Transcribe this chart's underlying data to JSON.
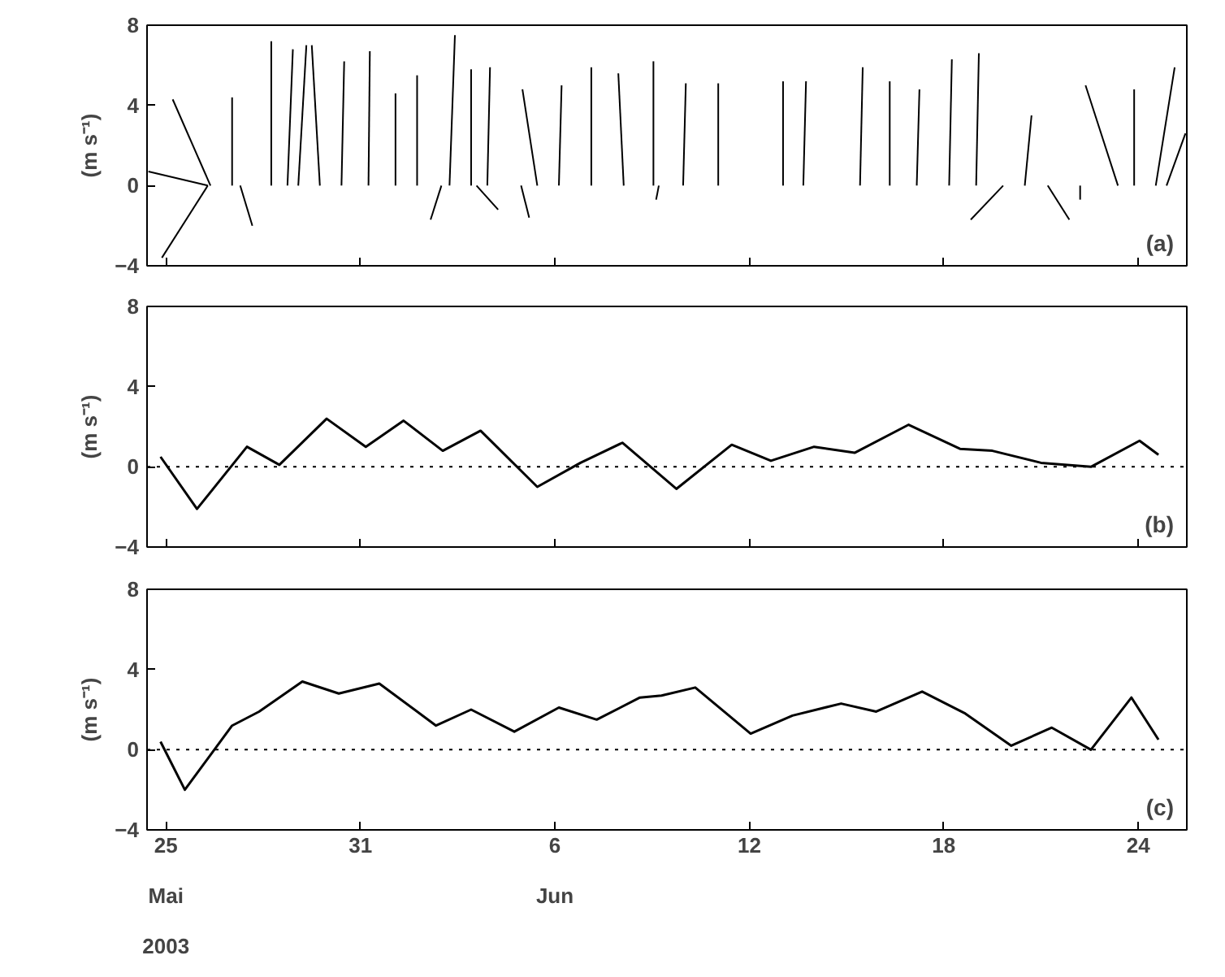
{
  "chart_data": [
    {
      "type": "line",
      "ylabel": "(m s⁻¹)",
      "xlim": [
        "2003-05-24T10:00",
        "2003-06-25T12:00"
      ],
      "ylim": [
        -4,
        8
      ],
      "xticks": [
        "2003-05-25",
        "2003-05-31",
        "2003-06-06",
        "2003-06-12",
        "2003-06-18",
        "2003-06-24"
      ],
      "yticks": [
        -4,
        0,
        4,
        8
      ],
      "tick_labels": "y",
      "annotations": [
        "(a)"
      ],
      "series": [
        {
          "color": "#000000",
          "x": [
            "2003-05-26T07:00",
            "2003-05-24T11:00"
          ],
          "values": [
            0,
            0.7
          ]
        },
        {
          "color": "#000000",
          "x": [
            "2003-05-26T07:00",
            "2003-05-24T21:00"
          ],
          "values": [
            0,
            -3.6
          ]
        },
        {
          "color": "#000000",
          "x": [
            "2003-05-26T09:00",
            "2003-05-25T05:00"
          ],
          "values": [
            0,
            4.3
          ]
        },
        {
          "color": "#000000",
          "x": [
            "2003-05-27T01:00",
            "2003-05-27T01:00"
          ],
          "values": [
            0,
            4.4
          ]
        },
        {
          "color": "#000000",
          "x": [
            "2003-05-27T07:00",
            "2003-05-27T16:00"
          ],
          "values": [
            0,
            -2.0
          ]
        },
        {
          "color": "#000000",
          "x": [
            "2003-05-28T06:00",
            "2003-05-28T06:00"
          ],
          "values": [
            0,
            7.2
          ]
        },
        {
          "color": "#000000",
          "x": [
            "2003-05-28T18:00",
            "2003-05-28T22:00"
          ],
          "values": [
            0,
            6.8
          ]
        },
        {
          "color": "#000000",
          "x": [
            "2003-05-29T02:00",
            "2003-05-29T08:00"
          ],
          "values": [
            0,
            7.0
          ]
        },
        {
          "color": "#000000",
          "x": [
            "2003-05-29T18:00",
            "2003-05-29T12:00"
          ],
          "values": [
            0,
            7.0
          ]
        },
        {
          "color": "#000000",
          "x": [
            "2003-05-30T10:00",
            "2003-05-30T12:00"
          ],
          "values": [
            0,
            6.2
          ]
        },
        {
          "color": "#000000",
          "x": [
            "2003-05-31T06:00",
            "2003-05-31T07:00"
          ],
          "values": [
            0,
            6.7
          ]
        },
        {
          "color": "#000000",
          "x": [
            "2003-06-01T02:00",
            "2003-06-01T02:00"
          ],
          "values": [
            0,
            4.6
          ]
        },
        {
          "color": "#000000",
          "x": [
            "2003-06-01T18:00",
            "2003-06-01T18:00"
          ],
          "values": [
            0,
            5.5
          ]
        },
        {
          "color": "#000000",
          "x": [
            "2003-06-02T12:00",
            "2003-06-02T04:00"
          ],
          "values": [
            0,
            -1.7
          ]
        },
        {
          "color": "#000000",
          "x": [
            "2003-06-02T18:00",
            "2003-06-02T22:00"
          ],
          "values": [
            0,
            7.5
          ]
        },
        {
          "color": "#000000",
          "x": [
            "2003-06-03T10:00",
            "2003-06-03T10:00"
          ],
          "values": [
            0,
            5.8
          ]
        },
        {
          "color": "#000000",
          "x": [
            "2003-06-03T22:00",
            "2003-06-04T00:00"
          ],
          "values": [
            0,
            5.9
          ]
        },
        {
          "color": "#000000",
          "x": [
            "2003-06-03T14:00",
            "2003-06-04T06:00"
          ],
          "values": [
            0,
            -1.2
          ]
        },
        {
          "color": "#000000",
          "x": [
            "2003-06-04T23:00",
            "2003-06-05T05:00"
          ],
          "values": [
            0,
            -1.6
          ]
        },
        {
          "color": "#000000",
          "x": [
            "2003-06-05T11:00",
            "2003-06-05T00:00"
          ],
          "values": [
            0,
            4.8
          ]
        },
        {
          "color": "#000000",
          "x": [
            "2003-06-06T03:00",
            "2003-06-06T05:00"
          ],
          "values": [
            0,
            5.0
          ]
        },
        {
          "color": "#000000",
          "x": [
            "2003-06-07T03:00",
            "2003-06-07T03:00"
          ],
          "values": [
            0,
            5.9
          ]
        },
        {
          "color": "#000000",
          "x": [
            "2003-06-08T03:00",
            "2003-06-07T23:00"
          ],
          "values": [
            0,
            5.6
          ]
        },
        {
          "color": "#000000",
          "x": [
            "2003-06-09T01:00",
            "2003-06-09T01:00"
          ],
          "values": [
            0,
            6.2
          ]
        },
        {
          "color": "#000000",
          "x": [
            "2003-06-09T05:00",
            "2003-06-09T03:00"
          ],
          "values": [
            0,
            -0.7
          ]
        },
        {
          "color": "#000000",
          "x": [
            "2003-06-09T23:00",
            "2003-06-10T01:00"
          ],
          "values": [
            0,
            5.1
          ]
        },
        {
          "color": "#000000",
          "x": [
            "2003-06-11T01:00",
            "2003-06-11T01:00"
          ],
          "values": [
            0,
            5.1
          ]
        },
        {
          "color": "#000000",
          "x": [
            "2003-06-13T01:00",
            "2003-06-13T01:00"
          ],
          "values": [
            0,
            5.2
          ]
        },
        {
          "color": "#000000",
          "x": [
            "2003-06-13T16:00",
            "2003-06-13T18:00"
          ],
          "values": [
            0,
            5.2
          ]
        },
        {
          "color": "#000000",
          "x": [
            "2003-06-15T10:00",
            "2003-06-15T12:00"
          ],
          "values": [
            0,
            5.9
          ]
        },
        {
          "color": "#000000",
          "x": [
            "2003-06-16T08:00",
            "2003-06-16T08:00"
          ],
          "values": [
            0,
            5.2
          ]
        },
        {
          "color": "#000000",
          "x": [
            "2003-06-17T04:00",
            "2003-06-17T06:00"
          ],
          "values": [
            0,
            4.8
          ]
        },
        {
          "color": "#000000",
          "x": [
            "2003-06-18T04:00",
            "2003-06-18T06:00"
          ],
          "values": [
            0,
            6.3
          ]
        },
        {
          "color": "#000000",
          "x": [
            "2003-06-19T00:00",
            "2003-06-19T02:00"
          ],
          "values": [
            0,
            6.6
          ]
        },
        {
          "color": "#000000",
          "x": [
            "2003-06-19T20:00",
            "2003-06-18T20:00"
          ],
          "values": [
            0,
            -1.7
          ]
        },
        {
          "color": "#000000",
          "x": [
            "2003-06-20T12:00",
            "2003-06-20T17:00"
          ],
          "values": [
            0,
            3.5
          ]
        },
        {
          "color": "#000000",
          "x": [
            "2003-06-21T05:00",
            "2003-06-21T21:00"
          ],
          "values": [
            0,
            -1.7
          ]
        },
        {
          "color": "#000000",
          "x": [
            "2003-06-22T05:00",
            "2003-06-22T05:00"
          ],
          "values": [
            0,
            -0.7
          ]
        },
        {
          "color": "#000000",
          "x": [
            "2003-06-23T09:00",
            "2003-06-22T09:00"
          ],
          "values": [
            0,
            5.0
          ]
        },
        {
          "color": "#000000",
          "x": [
            "2003-06-23T21:00",
            "2003-06-23T21:00"
          ],
          "values": [
            0,
            4.8
          ]
        },
        {
          "color": "#000000",
          "x": [
            "2003-06-24T13:00",
            "2003-06-25T03:00"
          ],
          "values": [
            0,
            5.9
          ]
        },
        {
          "color": "#000000",
          "x": [
            "2003-06-24T21:00",
            "2003-06-25T11:00"
          ],
          "values": [
            0,
            2.6
          ]
        }
      ]
    },
    {
      "type": "line",
      "ylabel": "(m s⁻¹)",
      "xlim": [
        "2003-05-24T10:00",
        "2003-06-25T12:00"
      ],
      "ylim": [
        -4,
        8
      ],
      "xticks": [
        "2003-05-25",
        "2003-05-31",
        "2003-06-06",
        "2003-06-12",
        "2003-06-18",
        "2003-06-24"
      ],
      "yticks": [
        -4,
        0,
        4,
        8
      ],
      "tick_labels": "y",
      "annotations": [
        "(b)"
      ],
      "ref_lines": [
        {
          "axis": "y",
          "value": 0,
          "label": null,
          "color": "#000000",
          "line_style": "dotted"
        }
      ],
      "series": [
        {
          "color": "#000000",
          "x": [
            "2003-05-24T20:00",
            "2003-05-25T23:00",
            "2003-05-27T12:00",
            "2003-05-28T12:00",
            "2003-05-29T23:00",
            "2003-05-31T04:00",
            "2003-06-01T08:00",
            "2003-06-02T13:00",
            "2003-06-03T17:00",
            "2003-06-05T11:00",
            "2003-06-06T19:00",
            "2003-06-08T02:00",
            "2003-06-09T18:00",
            "2003-06-11T11:00",
            "2003-06-12T16:00",
            "2003-06-14T00:00",
            "2003-06-15T06:00",
            "2003-06-16T22:00",
            "2003-06-18T12:00",
            "2003-06-19T12:00",
            "2003-06-21T00:00",
            "2003-06-22T13:00",
            "2003-06-24T01:00",
            "2003-06-24T15:00"
          ],
          "values": [
            0.5,
            -2.1,
            1.0,
            0.1,
            2.4,
            1.0,
            2.3,
            0.8,
            1.8,
            -1.0,
            0.2,
            1.2,
            -1.1,
            1.1,
            0.3,
            1.0,
            0.7,
            2.1,
            0.9,
            0.8,
            0.2,
            0.0,
            1.3,
            0.6
          ]
        }
      ]
    },
    {
      "type": "line",
      "ylabel": "(m s⁻¹)",
      "xlim": [
        "2003-05-24T10:00",
        "2003-06-25T12:00"
      ],
      "ylim": [
        -4,
        8
      ],
      "xticks": [
        {
          "value": "2003-05-25",
          "label": "25"
        },
        {
          "value": "2003-05-31",
          "label": "31"
        },
        {
          "value": "2003-06-06",
          "label": "6"
        },
        {
          "value": "2003-06-12",
          "label": "12"
        },
        {
          "value": "2003-06-18",
          "label": "18"
        },
        {
          "value": "2003-06-24",
          "label": "24"
        }
      ],
      "yticks": [
        -4,
        0,
        4,
        8
      ],
      "annotations": [
        "(c)",
        "Mai",
        "Jun",
        "2003"
      ],
      "ref_lines": [
        {
          "axis": "y",
          "value": 0,
          "label": null,
          "color": "#000000",
          "line_style": "dotted"
        }
      ],
      "series": [
        {
          "color": "#000000",
          "x": [
            "2003-05-24T20:00",
            "2003-05-25T14:00",
            "2003-05-27T01:00",
            "2003-05-27T21:00",
            "2003-05-29T05:00",
            "2003-05-30T08:00",
            "2003-05-31T14:00",
            "2003-06-02T08:00",
            "2003-06-03T10:00",
            "2003-06-04T18:00",
            "2003-06-06T03:00",
            "2003-06-07T07:00",
            "2003-06-08T15:00",
            "2003-06-09T07:00",
            "2003-06-10T08:00",
            "2003-06-12T01:00",
            "2003-06-13T08:00",
            "2003-06-14T20:00",
            "2003-06-15T22:00",
            "2003-06-17T08:00",
            "2003-06-18T16:00",
            "2003-06-20T02:00",
            "2003-06-21T08:00",
            "2003-06-22T13:00",
            "2003-06-23T19:00",
            "2003-06-24T15:00"
          ],
          "values": [
            0.4,
            -2.0,
            1.2,
            1.9,
            3.4,
            2.8,
            3.3,
            1.2,
            2.0,
            0.9,
            2.1,
            1.5,
            2.6,
            2.7,
            3.1,
            0.8,
            1.7,
            2.3,
            1.9,
            2.9,
            1.8,
            0.2,
            1.1,
            0.0,
            2.6,
            0.5
          ]
        }
      ]
    }
  ]
}
